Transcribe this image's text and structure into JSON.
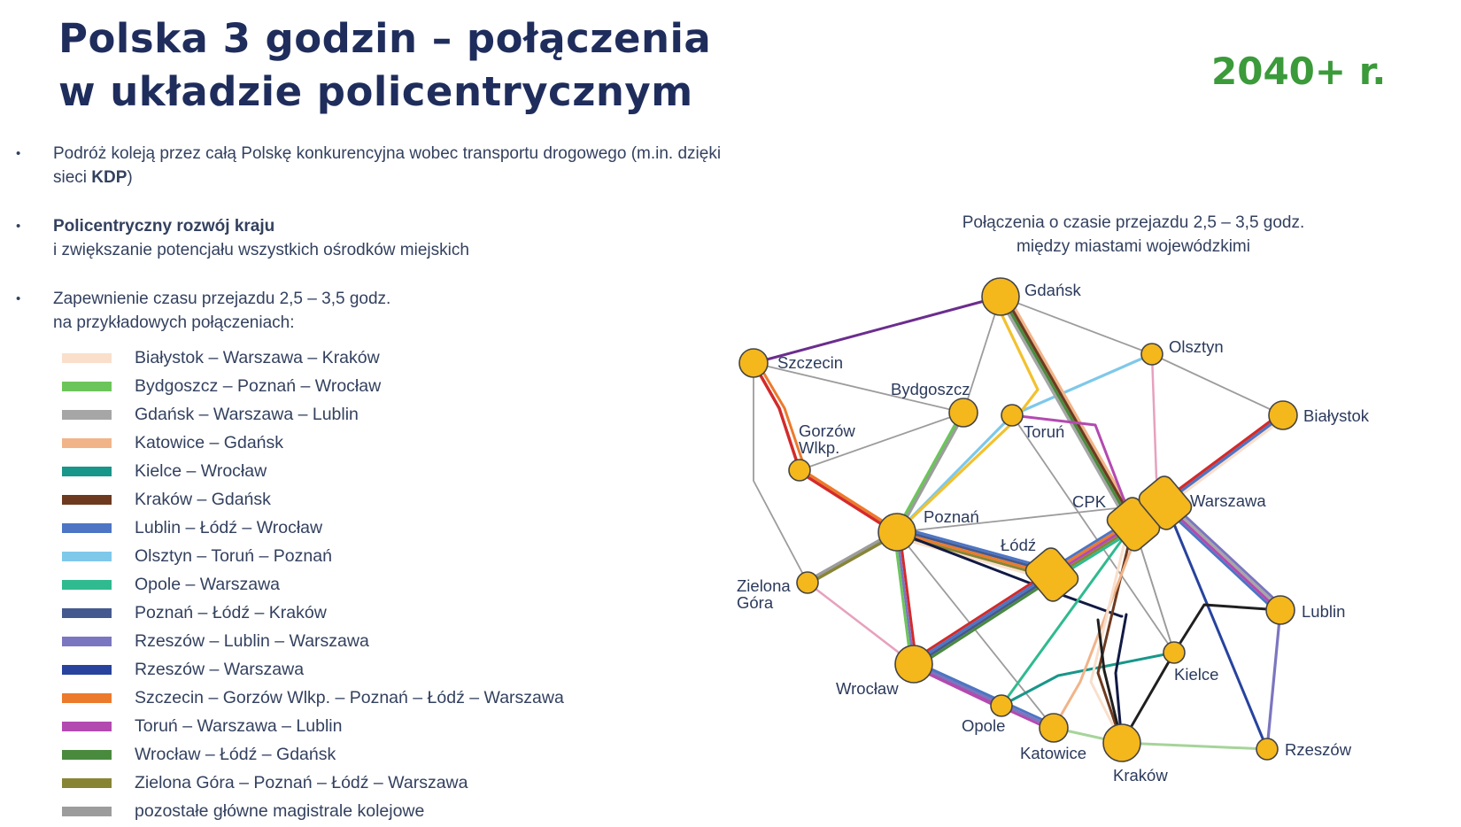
{
  "title": {
    "bold": "Polska 3 godzin",
    "rest": " – połączenia",
    "line2": "w układzie policentrycznym"
  },
  "year_badge": "2040+ r.",
  "bullets": [
    {
      "pre": "Podróż koleją przez całą Polskę konkurencyjna wobec transportu drogowego (m.in. dzięki sieci ",
      "bold": "KDP",
      "post": ")"
    },
    {
      "bold": "Policentryczny rozwój kraju",
      "rest": "i zwiększanie potencjału wszystkich ośrodków miejskich"
    },
    {
      "line1": "Zapewnienie czasu przejazdu 2,5 – 3,5 godz.",
      "line2": "na przykładowych połączeniach:"
    }
  ],
  "legend": [
    {
      "label": "Białystok – Warszawa – Kraków",
      "color": "#f9dfcc"
    },
    {
      "label": "Bydgoszcz – Poznań – Wrocław",
      "color": "#6cc55a"
    },
    {
      "label": "Gdańsk – Warszawa – Lublin",
      "color": "#a6a6a6"
    },
    {
      "label": "Katowice – Gdańsk",
      "color": "#f1b489"
    },
    {
      "label": "Kielce – Wrocław",
      "color": "#18968a"
    },
    {
      "label": "Kraków – Gdańsk",
      "color": "#6e3a1f"
    },
    {
      "label": "Lublin – Łódź – Wrocław",
      "color": "#4d75c4"
    },
    {
      "label": "Olsztyn – Toruń – Poznań",
      "color": "#7ec8ea"
    },
    {
      "label": "Opole – Warszawa",
      "color": "#2fba8f"
    },
    {
      "label": "Poznań – Łódź – Kraków",
      "color": "#44598e"
    },
    {
      "label": "Rzeszów – Lublin – Warszawa",
      "color": "#7b76c0"
    },
    {
      "label": "Rzeszów – Warszawa",
      "color": "#27439e"
    },
    {
      "label": "Szczecin – Gorzów Wlkp. – Poznań – Łódź – Warszawa",
      "color": "#ec7a2c"
    },
    {
      "label": "Toruń – Warszawa – Lublin",
      "color": "#b34ab0"
    },
    {
      "label": "Wrocław – Łódź – Gdańsk",
      "color": "#4a8a3e"
    },
    {
      "label": "Zielona Góra – Poznań – Łódź – Warszawa",
      "color": "#878534"
    },
    {
      "label": " pozostałe główne magistrale kolejowe",
      "color": "#9c9c9c"
    }
  ],
  "map": {
    "caption_line1": "Połączenia o czasie przejazdu 2,5 – 3,5 godz.",
    "caption_line2": "między miastami wojewódzkimi",
    "cities": [
      {
        "id": "gdansk",
        "label": "Gdańsk",
        "size": "large"
      },
      {
        "id": "szczecin",
        "label": "Szczecin",
        "size": "medium"
      },
      {
        "id": "olsztyn",
        "label": "Olsztyn",
        "size": "small"
      },
      {
        "id": "bydgoszcz",
        "label": "Bydgoszcz",
        "size": "medium"
      },
      {
        "id": "torun",
        "label": "Toruń",
        "size": "small"
      },
      {
        "id": "bialystok",
        "label": "Białystok",
        "size": "medium"
      },
      {
        "id": "gorzow",
        "label": [
          "Gorzów",
          "Wlkp."
        ],
        "size": "small"
      },
      {
        "id": "poznan",
        "label": "Poznań",
        "size": "large"
      },
      {
        "id": "cpk",
        "label": "CPK",
        "size": "hub"
      },
      {
        "id": "warszawa",
        "label": "Warszawa",
        "size": "hub"
      },
      {
        "id": "lodz",
        "label": "Łódź",
        "size": "hub"
      },
      {
        "id": "zielona",
        "label": [
          "Zielona",
          "Góra"
        ],
        "size": "small"
      },
      {
        "id": "lublin",
        "label": "Lublin",
        "size": "medium"
      },
      {
        "id": "wroclaw",
        "label": "Wrocław",
        "size": "large"
      },
      {
        "id": "kielce",
        "label": "Kielce",
        "size": "small"
      },
      {
        "id": "opole",
        "label": "Opole",
        "size": "small"
      },
      {
        "id": "katowice",
        "label": "Katowice",
        "size": "medium"
      },
      {
        "id": "krakow",
        "label": "Kraków",
        "size": "large"
      },
      {
        "id": "rzeszow",
        "label": "Rzeszów",
        "size": "small"
      }
    ],
    "colors": {
      "node": "#f4b71c",
      "node_stroke": "#444444",
      "black_line": "#1f1f1f",
      "navy_line": "#111a44",
      "red_line": "#d42a2a",
      "purple_line": "#6b2d8e",
      "pink_line": "#e7a1be",
      "yellow_line": "#f2c12e"
    }
  }
}
